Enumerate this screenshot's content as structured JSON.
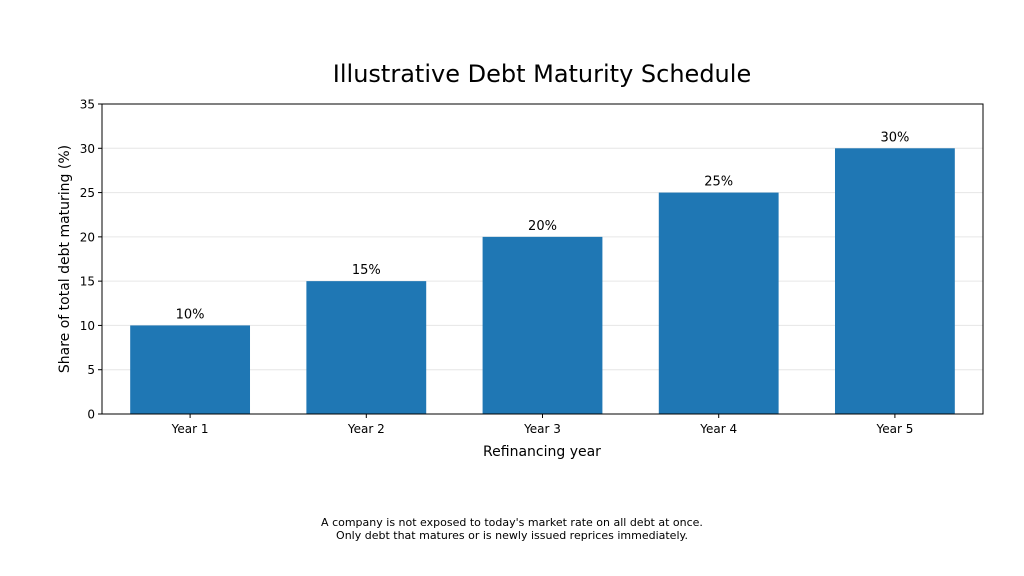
{
  "chart_data": {
    "type": "bar",
    "title": "Illustrative Debt Maturity Schedule",
    "xlabel": "Refinancing year",
    "ylabel": "Share of total debt maturing (%)",
    "categories": [
      "Year 1",
      "Year 2",
      "Year 3",
      "Year 4",
      "Year 5"
    ],
    "values": [
      10,
      15,
      20,
      25,
      30
    ],
    "data_labels": [
      "10%",
      "15%",
      "20%",
      "25%",
      "30%"
    ],
    "ylim": [
      0,
      35
    ],
    "yticks": [
      0,
      5,
      10,
      15,
      20,
      25,
      30,
      35
    ],
    "grid": "horizontal",
    "bar_color": "#1f77b4"
  },
  "caption": {
    "line1": "A company is not exposed to today's market rate on all debt at once.",
    "line2": "Only debt that matures or is newly issued reprices immediately."
  }
}
